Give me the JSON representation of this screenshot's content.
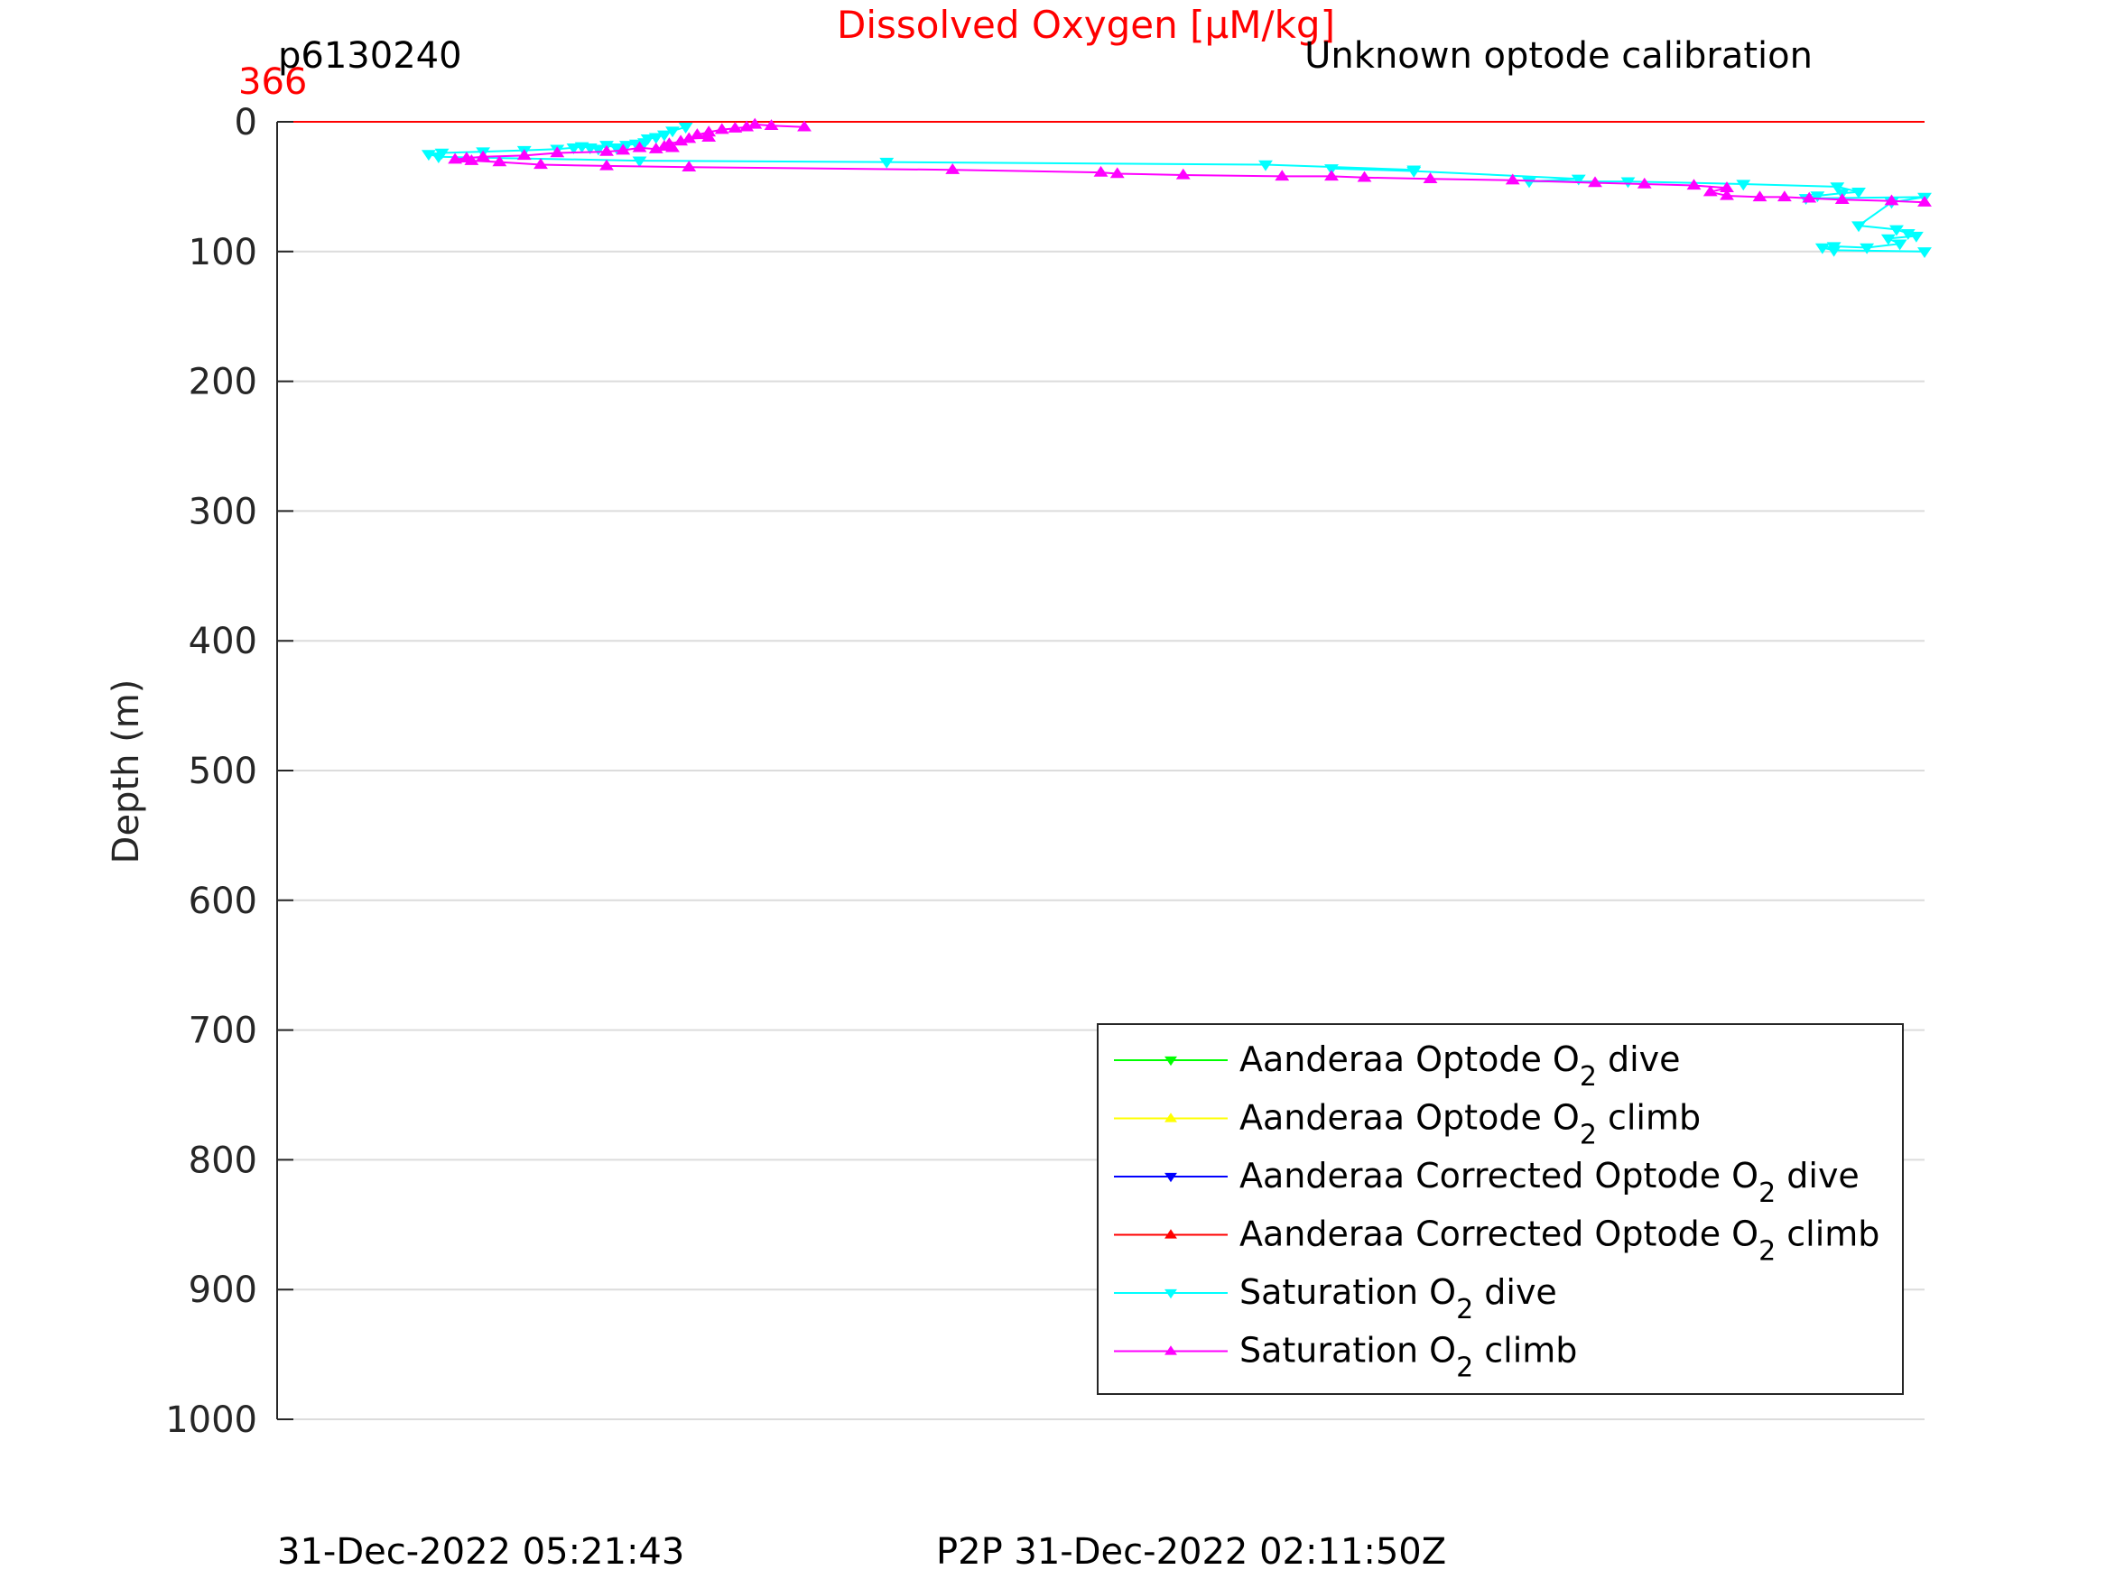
{
  "header": {
    "title": "Dissolved Oxygen [μM/kg]",
    "glider_id": "p6130240",
    "calibration_note": "Unknown optode calibration",
    "top_value": "366"
  },
  "footer": {
    "left_timestamp": "31-Dec-2022 05:21:43",
    "p2p_timestamp": "P2P 31-Dec-2022 02:11:50Z"
  },
  "colors": {
    "title": "#ff0000",
    "optode_dive": "#00ff00",
    "optode_climb": "#ffff00",
    "corrected_dive": "#0000ff",
    "corrected_climb": "#ff0000",
    "saturation_dive": "#00ffff",
    "saturation_climb": "#ff00ff",
    "grid": "#dcdcdc"
  },
  "chart_data": {
    "type": "line",
    "title": "Dissolved Oxygen [μM/kg]",
    "ylabel": "Depth (m)",
    "xlabel": "",
    "ylim": [
      0,
      1000
    ],
    "y_reversed": true,
    "yticks": [
      0,
      100,
      200,
      300,
      400,
      500,
      600,
      700,
      800,
      900,
      1000
    ],
    "xlim": [
      0,
      1
    ],
    "grid": true,
    "legend_placement": "bottom-right",
    "series": [
      {
        "name": "Aanderaa Optode O",
        "sub": "2",
        "suffix": " dive",
        "color": "#00ff00",
        "marker": "down",
        "x": [],
        "y": []
      },
      {
        "name": "Aanderaa Optode O",
        "sub": "2",
        "suffix": " climb",
        "color": "#ffff00",
        "marker": "up",
        "x": [],
        "y": []
      },
      {
        "name": "Aanderaa Corrected Optode O",
        "sub": "2",
        "suffix": " dive",
        "color": "#0000ff",
        "marker": "down",
        "x": [],
        "y": []
      },
      {
        "name": "Aanderaa Corrected Optode O",
        "sub": "2",
        "suffix": " climb",
        "color": "#ff0000",
        "marker": "up",
        "x": [
          0,
          1
        ],
        "y": [
          0,
          0
        ]
      },
      {
        "name": "Saturation O",
        "sub": "2",
        "suffix": " dive",
        "color": "#00ffff",
        "marker": "down",
        "x": [
          0.248,
          0.24,
          0.235,
          0.23,
          0.225,
          0.223,
          0.218,
          0.212,
          0.206,
          0.2,
          0.195,
          0.19,
          0.185,
          0.18,
          0.17,
          0.15,
          0.125,
          0.1,
          0.092,
          0.098,
          0.22,
          0.37,
          0.6,
          0.69,
          0.64,
          0.69,
          0.79,
          0.76,
          0.82,
          0.89,
          0.947,
          0.96,
          0.95,
          0.935,
          0.928,
          1.0,
          0.98,
          0.96,
          0.983,
          0.99,
          0.995,
          0.978,
          0.985,
          0.965,
          0.945,
          0.938,
          0.945,
          1.0
        ],
        "y": [
          4,
          7,
          10,
          12,
          13,
          16,
          17,
          18,
          20,
          18,
          21,
          20,
          19,
          20,
          21,
          22,
          23,
          24,
          25,
          27,
          30,
          31,
          33,
          37,
          36,
          38,
          44,
          46,
          46,
          48,
          50,
          54,
          55,
          57,
          59,
          58,
          62,
          80,
          83,
          86,
          88,
          90,
          94,
          97,
          96,
          97,
          99,
          100
        ]
      },
      {
        "name": "Saturation O",
        "sub": "2",
        "suffix": " climb",
        "color": "#ff00ff",
        "marker": "up",
        "x": [
          0.32,
          0.3,
          0.29,
          0.285,
          0.278,
          0.27,
          0.262,
          0.255,
          0.262,
          0.25,
          0.245,
          0.238,
          0.235,
          0.24,
          0.23,
          0.22,
          0.21,
          0.2,
          0.17,
          0.15,
          0.125,
          0.115,
          0.108,
          0.118,
          0.135,
          0.16,
          0.2,
          0.25,
          0.41,
          0.5,
          0.51,
          0.55,
          0.61,
          0.64,
          0.66,
          0.7,
          0.75,
          0.8,
          0.83,
          0.86,
          0.88,
          0.87,
          0.88,
          0.9,
          0.915,
          0.93,
          0.95,
          0.98,
          1.0
        ],
        "y": [
          4,
          3,
          2,
          4,
          5,
          6,
          8,
          10,
          12,
          13,
          15,
          17,
          19,
          20,
          21,
          20,
          22,
          23,
          24,
          26,
          27,
          28,
          29,
          30,
          31,
          33,
          34,
          35,
          37,
          39,
          40,
          41,
          42,
          42,
          43,
          44,
          45,
          47,
          48,
          49,
          51,
          54,
          57,
          58,
          58,
          59,
          60,
          61,
          62
        ]
      }
    ]
  }
}
